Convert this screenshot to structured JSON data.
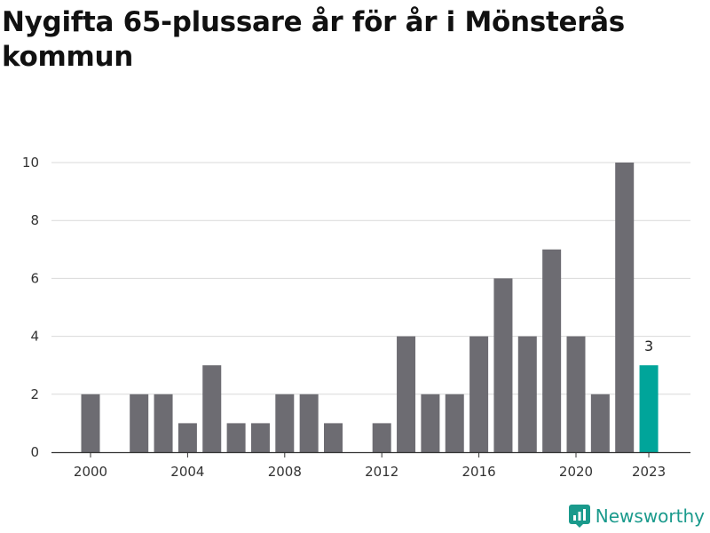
{
  "chart_data": {
    "type": "bar",
    "title": "Nygifta 65-plussare år för år i Mönsterås kommun",
    "xlabel": "",
    "ylabel": "",
    "ylim": [
      0,
      10
    ],
    "yticks": [
      0,
      2,
      4,
      6,
      8,
      10
    ],
    "xticks": [
      "2000",
      "2004",
      "2008",
      "2012",
      "2016",
      "2020",
      "2023"
    ],
    "categories": [
      "2000",
      "2001",
      "2002",
      "2003",
      "2004",
      "2005",
      "2006",
      "2007",
      "2008",
      "2009",
      "2010",
      "2011",
      "2012",
      "2013",
      "2014",
      "2015",
      "2016",
      "2017",
      "2018",
      "2019",
      "2020",
      "2021",
      "2022",
      "2023"
    ],
    "values": [
      2,
      0,
      2,
      2,
      1,
      3,
      1,
      1,
      2,
      2,
      1,
      0,
      1,
      4,
      2,
      2,
      4,
      6,
      4,
      7,
      4,
      2,
      10,
      3
    ],
    "highlight": {
      "category": "2023",
      "label": "3"
    },
    "colors": {
      "bar": "#6d6c72",
      "highlight": "#00a59a",
      "grid": "#d9d9d9",
      "axis": "#333333"
    },
    "grid": true
  },
  "brand": {
    "name": "Newsworthy",
    "color": "#1a9a8c",
    "icon": "newsworthy-logo-icon"
  }
}
